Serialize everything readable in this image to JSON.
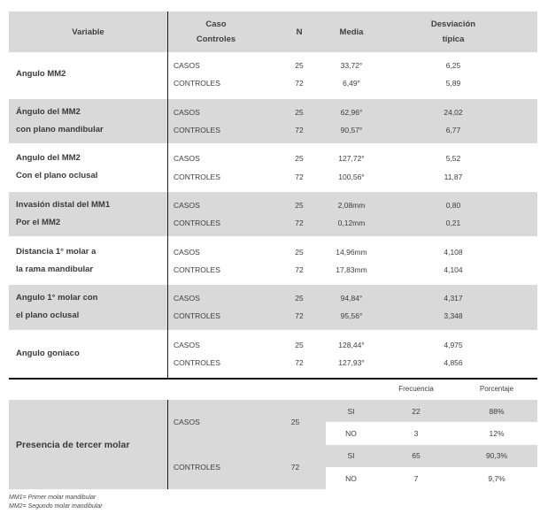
{
  "header": {
    "variable": "Variable",
    "caso_line1": "Caso",
    "caso_line2": "Controles",
    "n": "N",
    "media": "Media",
    "desv_line1": "Desviación",
    "desv_line2": "típica"
  },
  "group_labels": {
    "casos": "CASOS",
    "controles": "CONTROLES"
  },
  "rows": [
    {
      "variable_line1": "Angulo MM2",
      "variable_line2": "",
      "casos": {
        "n": "25",
        "media": "33,72°",
        "desv": "6,25"
      },
      "controles": {
        "n": "72",
        "media": "6,49°",
        "desv": "5,89"
      }
    },
    {
      "variable_line1": "Ángulo del MM2",
      "variable_line2": "con plano mandibular",
      "casos": {
        "n": "25",
        "media": "62,96°",
        "desv": "24,02"
      },
      "controles": {
        "n": "72",
        "media": "90,57°",
        "desv": "6,77"
      }
    },
    {
      "variable_line1": "Angulo del MM2",
      "variable_line2": "Con el plano oclusal",
      "casos": {
        "n": "25",
        "media": "127,72°",
        "desv": "5,52"
      },
      "controles": {
        "n": "72",
        "media": "100,56°",
        "desv": "11,87"
      }
    },
    {
      "variable_line1": "Invasión distal del MM1",
      "variable_line2": "Por el MM2",
      "casos": {
        "n": "25",
        "media": "2,08mm",
        "desv": "0,80"
      },
      "controles": {
        "n": "72",
        "media": "0,12mm",
        "desv": "0,21"
      }
    },
    {
      "variable_line1": "Distancia 1° molar a",
      "variable_line2": "la rama mandibular",
      "casos": {
        "n": "25",
        "media": "14,96mm",
        "desv": "4,108"
      },
      "controles": {
        "n": "72",
        "media": "17,83mm",
        "desv": "4,104"
      }
    },
    {
      "variable_line1": "Angulo 1° molar con",
      "variable_line2": "el plano oclusal",
      "casos": {
        "n": "25",
        "media": "94,84°",
        "desv": "4,317"
      },
      "controles": {
        "n": "72",
        "media": "95,56°",
        "desv": "3,348"
      }
    },
    {
      "variable_line1": "Angulo goniaco",
      "variable_line2": "",
      "casos": {
        "n": "25",
        "media": "128,44°",
        "desv": "4,975"
      },
      "controles": {
        "n": "72",
        "media": "127,93°",
        "desv": "4,856"
      }
    }
  ],
  "table2": {
    "freq_header": "Frecuencia",
    "pct_header": "Porcentaje",
    "variable": "Presencia de tercer molar",
    "casos": {
      "label": "CASOS",
      "n": "25"
    },
    "controles": {
      "label": "CONTROLES",
      "n": "72"
    },
    "answers": [
      {
        "answer": "SI",
        "freq": "22",
        "pct": "88%"
      },
      {
        "answer": "NO",
        "freq": "3",
        "pct": "12%"
      },
      {
        "answer": "SI",
        "freq": "65",
        "pct": "90,3%"
      },
      {
        "answer": "NO",
        "freq": "7",
        "pct": "9,7%"
      }
    ]
  },
  "footnotes": {
    "note1": "MM1= Primer molar mandibular",
    "note2": "MM2= Segundo molar mandibular"
  },
  "colors": {
    "row_shade": "#d9d9d9",
    "rule": "#1c1c1c",
    "text": "#3d3d3d"
  }
}
